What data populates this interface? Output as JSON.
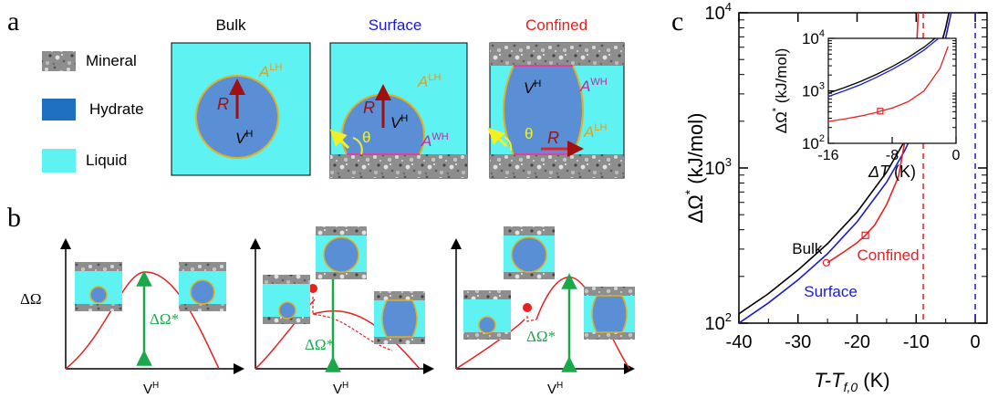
{
  "panel_a": {
    "label": "a",
    "legend": [
      {
        "label": "Mineral",
        "icon": "granite-swatch"
      },
      {
        "label": "Hydrate",
        "color": "#1f6fc0"
      },
      {
        "label": "Liquid",
        "color": "#5ff2f2"
      }
    ],
    "boxes": [
      {
        "title": "Bulk",
        "title_color": "#000000",
        "labels": {
          "R": "R",
          "V": "V",
          "V_sup": "H",
          "A": "A",
          "A_sup": "LH"
        }
      },
      {
        "title": "Surface",
        "title_color": "#1a1ad6",
        "labels": {
          "R": "R",
          "V": "V",
          "V_sup": "H",
          "A1": "A",
          "A1_sup": "LH",
          "A2": "A",
          "A2_sup": "WH",
          "theta": "θ"
        }
      },
      {
        "title": "Confined",
        "title_color": "#e82020",
        "labels": {
          "R": "R",
          "V": "V",
          "V_sup": "H",
          "A1": "A",
          "A1_sup": "WH",
          "A2": "A",
          "A2_sup": "LH",
          "theta": "θ"
        }
      }
    ]
  },
  "panel_b": {
    "label": "b",
    "ylabel": "ΔΩ",
    "xlabel_main": "V",
    "xlabel_sup": "H",
    "barrier_label": "ΔΩ*"
  },
  "chart_data": {
    "type": "line",
    "panel_label": "c",
    "xlabel": "T-T",
    "xlabel_sub": "f,0",
    "xlabel_unit": " (K)",
    "ylabel": "ΔΩ",
    "ylabel_sup": "*",
    "ylabel_unit": " (kJ/mol)",
    "yscale": "log",
    "xlim": [
      -40,
      2
    ],
    "ylim": [
      100,
      10000
    ],
    "xticks": [
      "-40",
      "-30",
      "-20",
      "-10",
      "0"
    ],
    "yticks": [
      {
        "base": "10",
        "exp": "2"
      },
      {
        "base": "10",
        "exp": "3"
      },
      {
        "base": "10",
        "exp": "4"
      }
    ],
    "series": [
      {
        "name": "Bulk",
        "color": "#000000",
        "x": [
          -40,
          -35,
          -30,
          -25,
          -20,
          -15,
          -12,
          -10,
          -8,
          -6,
          -5,
          -4
        ],
        "y": [
          115,
          155,
          220,
          325,
          520,
          940,
          1480,
          2150,
          3300,
          5800,
          8000,
          12000
        ]
      },
      {
        "name": "Surface",
        "color": "#1a1ad6",
        "x": [
          -40,
          -35,
          -30,
          -25,
          -20,
          -15,
          -12,
          -10,
          -8,
          -6,
          -5,
          -4
        ],
        "y": [
          100,
          135,
          190,
          280,
          450,
          810,
          1280,
          1850,
          2850,
          5000,
          6900,
          10300
        ]
      },
      {
        "name": "Confined",
        "color": "#e82020",
        "x": [
          -25,
          -22,
          -20,
          -18.6,
          -17,
          -15,
          -13,
          -11,
          -10,
          -9.6
        ],
        "y": [
          245,
          292,
          330,
          368,
          430,
          580,
          880,
          2300,
          5200,
          11000
        ]
      }
    ],
    "markers": [
      {
        "series": "Confined",
        "shape": "circle",
        "x": -25.2,
        "y": 245
      },
      {
        "series": "Confined",
        "shape": "square",
        "x": -18.6,
        "y": 368
      }
    ],
    "vlines": [
      {
        "x": -8.8,
        "color": "#e82020",
        "style": "dashed"
      },
      {
        "x": 0,
        "color": "#1a1ad6",
        "style": "dashed"
      }
    ],
    "labels": [
      {
        "text": "Bulk",
        "color": "#000000",
        "x": -31,
        "y": 280
      },
      {
        "text": "Confined",
        "color": "#e82020",
        "x": -20,
        "y": 255
      },
      {
        "text": "Surface",
        "color": "#1a1ad6",
        "x": -29,
        "y": 148
      }
    ],
    "inset": {
      "type": "line",
      "xlabel": "ΔT",
      "xlabel_unit": " (K)",
      "ylabel": "ΔΩ",
      "ylabel_sup": "*",
      "ylabel_unit": " (kJ/mol)",
      "yscale": "log",
      "xlim": [
        -16,
        0
      ],
      "ylim": [
        100,
        10000
      ],
      "xticks": [
        "-16",
        "-8",
        "0"
      ],
      "yticks": [
        {
          "base": "10",
          "exp": "2"
        },
        {
          "base": "10",
          "exp": "3"
        },
        {
          "base": "10",
          "exp": "4"
        }
      ],
      "series": [
        {
          "name": "Bulk",
          "color": "#000000",
          "x": [
            -16,
            -14,
            -12,
            -10,
            -8,
            -6,
            -4,
            -3,
            -2
          ],
          "y": [
            900,
            1150,
            1500,
            2050,
            2900,
            4300,
            6800,
            9000,
            12000
          ]
        },
        {
          "name": "Surface",
          "color": "#1a1ad6",
          "x": [
            -16,
            -14,
            -12,
            -10,
            -8,
            -6,
            -4,
            -3,
            -2
          ],
          "y": [
            780,
            1000,
            1300,
            1800,
            2550,
            3800,
            6000,
            8000,
            10500
          ]
        },
        {
          "name": "Confined",
          "color": "#e82020",
          "x": [
            -16,
            -14,
            -12,
            -10,
            -9.5,
            -8,
            -6,
            -4,
            -2,
            -1
          ],
          "y": [
            260,
            290,
            330,
            385,
            410,
            470,
            620,
            1000,
            2700,
            7000
          ]
        }
      ],
      "markers": [
        {
          "series": "Confined",
          "shape": "square",
          "x": -9.5,
          "y": 410
        }
      ]
    }
  }
}
